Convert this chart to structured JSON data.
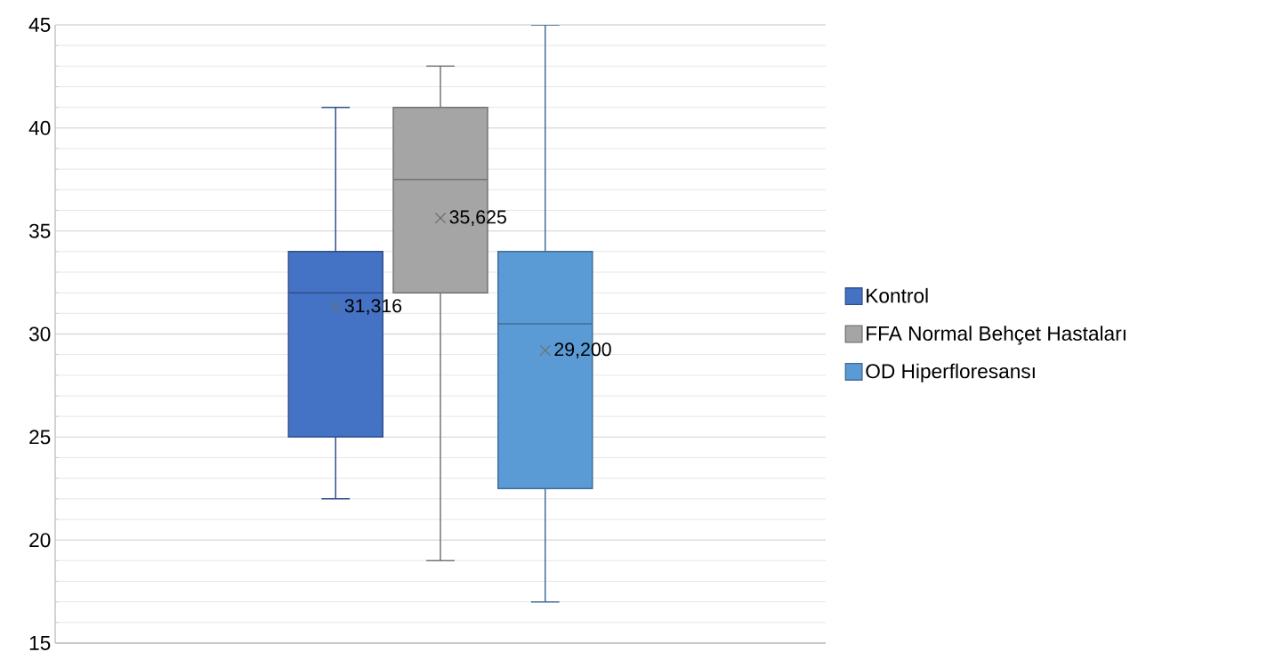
{
  "chart_data": {
    "type": "box",
    "categories": [
      null
    ],
    "series": [
      {
        "name": "Kontrol",
        "color": "#4472c4",
        "boxes": [
          {
            "low": 22,
            "q1": 25,
            "median": 32,
            "q3": 34,
            "high": 41,
            "mean": 31.316
          }
        ]
      },
      {
        "name": "FFA Normal Behçet Hastaları",
        "color": "#a5a5a5",
        "boxes": [
          {
            "low": 19,
            "q1": 32,
            "median": 37.5,
            "q3": 41,
            "high": 43,
            "mean": 35.625
          }
        ]
      },
      {
        "name": "OD Hiperfloresansı",
        "color": "#5b9bd5",
        "boxes": [
          {
            "low": 17,
            "q1": 22.5,
            "median": 30.5,
            "q3": 34,
            "high": 45,
            "mean": 29.2
          }
        ]
      }
    ],
    "annotations": [
      "31,316",
      "35,625",
      "29,200"
    ],
    "ylim": [
      15,
      45
    ],
    "yticks": [
      15,
      20,
      25,
      30,
      35,
      40,
      45
    ],
    "grid": "y",
    "legend": "right",
    "tick_labels": "y",
    "marker": "cross"
  }
}
